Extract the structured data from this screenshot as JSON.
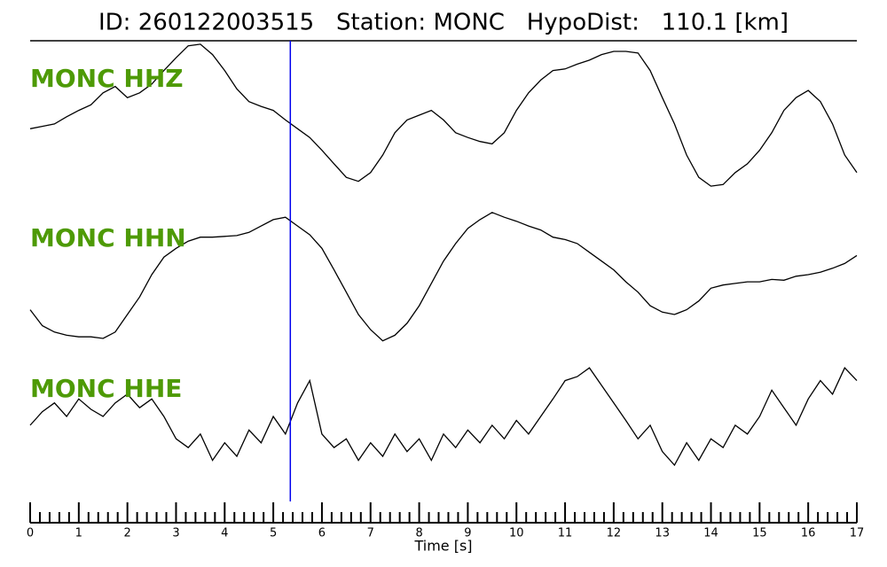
{
  "chart_data": {
    "type": "line",
    "title": "ID: 260122003515   Station: MONC   HypoDist:   110.1 [km]",
    "xlabel": "Time [s]",
    "xlim": [
      0,
      17
    ],
    "xticks": [
      0,
      1,
      2,
      3,
      4,
      5,
      6,
      7,
      8,
      9,
      10,
      11,
      12,
      13,
      14,
      15,
      16,
      17
    ],
    "xminorticks": [
      0.2,
      0.4,
      0.6,
      0.8,
      1.2,
      1.4,
      1.6,
      1.8,
      2.2,
      2.4,
      2.6,
      2.8,
      3.2,
      3.4,
      3.6,
      3.8,
      4.2,
      4.4,
      4.6,
      4.8,
      5.2,
      5.4,
      5.6,
      5.8,
      6.2,
      6.4,
      6.6,
      6.8,
      7.2,
      7.4,
      7.6,
      7.8,
      8.2,
      8.4,
      8.6,
      8.8,
      9.2,
      9.4,
      9.6,
      9.8,
      10.2,
      10.4,
      10.6,
      10.8,
      11.2,
      11.4,
      11.6,
      11.8,
      12.2,
      12.4,
      12.6,
      12.8,
      13.2,
      13.4,
      13.6,
      13.8,
      14.2,
      14.4,
      14.6,
      14.8,
      15.2,
      15.4,
      15.6,
      15.8,
      16.2,
      16.4,
      16.6,
      16.8
    ],
    "ylim": [
      -1,
      1
    ],
    "label_color": "#4e9a06",
    "pick": {
      "value": 5.35,
      "color": "#0000ee"
    },
    "x": [
      0,
      0.25,
      0.5,
      0.75,
      1,
      1.25,
      1.5,
      1.75,
      2,
      2.25,
      2.5,
      2.75,
      3,
      3.25,
      3.5,
      3.75,
      4,
      4.25,
      4.5,
      4.75,
      5,
      5.25,
      5.5,
      5.75,
      6,
      6.25,
      6.5,
      6.75,
      7,
      7.25,
      7.5,
      7.75,
      8,
      8.25,
      8.5,
      8.75,
      9,
      9.25,
      9.5,
      9.75,
      10,
      10.25,
      10.5,
      10.75,
      11,
      11.25,
      11.5,
      11.75,
      12,
      12.25,
      12.5,
      12.75,
      13,
      13.25,
      13.5,
      13.75,
      14,
      14.25,
      14.5,
      14.75,
      15,
      15.25,
      15.5,
      15.75,
      16,
      16.25,
      16.5,
      16.75,
      17
    ],
    "series": [
      {
        "name": "MONC HHZ",
        "color": "#000000",
        "values": [
          -0.17,
          -0.14,
          -0.11,
          -0.02,
          0.06,
          0.13,
          0.28,
          0.36,
          0.22,
          0.28,
          0.39,
          0.56,
          0.72,
          0.87,
          0.89,
          0.76,
          0.56,
          0.33,
          0.17,
          0.11,
          0.06,
          -0.06,
          -0.17,
          -0.28,
          -0.44,
          -0.61,
          -0.78,
          -0.83,
          -0.72,
          -0.5,
          -0.22,
          -0.06,
          0,
          0.06,
          -0.06,
          -0.22,
          -0.28,
          -0.33,
          -0.36,
          -0.22,
          0.06,
          0.28,
          0.44,
          0.56,
          0.58,
          0.64,
          0.69,
          0.76,
          0.8,
          0.8,
          0.78,
          0.56,
          0.22,
          -0.11,
          -0.5,
          -0.78,
          -0.89,
          -0.87,
          -0.72,
          -0.61,
          -0.44,
          -0.22,
          0.06,
          0.22,
          0.31,
          0.17,
          -0.11,
          -0.5,
          -0.72
        ]
      },
      {
        "name": "MONC HHN",
        "color": "#000000",
        "values": [
          -0.44,
          -0.64,
          -0.72,
          -0.76,
          -0.78,
          -0.78,
          -0.8,
          -0.72,
          -0.5,
          -0.28,
          0,
          0.22,
          0.33,
          0.42,
          0.47,
          0.47,
          0.48,
          0.49,
          0.53,
          0.61,
          0.69,
          0.72,
          0.61,
          0.5,
          0.33,
          0.06,
          -0.22,
          -0.5,
          -0.69,
          -0.83,
          -0.76,
          -0.61,
          -0.39,
          -0.11,
          0.17,
          0.39,
          0.58,
          0.69,
          0.78,
          0.72,
          0.67,
          0.61,
          0.56,
          0.47,
          0.44,
          0.39,
          0.28,
          0.17,
          0.06,
          -0.09,
          -0.22,
          -0.39,
          -0.47,
          -0.5,
          -0.44,
          -0.33,
          -0.17,
          -0.13,
          -0.11,
          -0.09,
          -0.09,
          -0.06,
          -0.07,
          -0.02,
          0,
          0.03,
          0.08,
          0.14,
          0.24
        ]
      },
      {
        "name": "MONC HHE",
        "color": "#000000",
        "values": [
          0,
          0.17,
          0.28,
          0.11,
          0.33,
          0.2,
          0.11,
          0.28,
          0.39,
          0.22,
          0.33,
          0.11,
          -0.17,
          -0.28,
          -0.11,
          -0.44,
          -0.22,
          -0.39,
          -0.06,
          -0.22,
          0.11,
          -0.11,
          0.28,
          0.56,
          -0.11,
          -0.28,
          -0.17,
          -0.44,
          -0.22,
          -0.39,
          -0.11,
          -0.33,
          -0.17,
          -0.44,
          -0.11,
          -0.28,
          -0.06,
          -0.22,
          0,
          -0.17,
          0.06,
          -0.11,
          0.11,
          0.33,
          0.56,
          0.61,
          0.72,
          0.5,
          0.28,
          0.06,
          -0.17,
          0,
          -0.33,
          -0.5,
          -0.22,
          -0.44,
          -0.17,
          -0.28,
          0,
          -0.11,
          0.11,
          0.44,
          0.22,
          0,
          0.33,
          0.56,
          0.39,
          0.72,
          0.56
        ]
      }
    ]
  }
}
